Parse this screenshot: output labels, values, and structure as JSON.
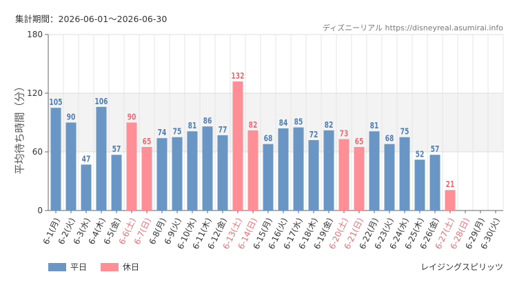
{
  "header": {
    "period": "集計期間：2026-06-01〜2026-06-30",
    "credit": "ディズニーリアル https://disneyreal.asumirai.info"
  },
  "attraction": "レイジングスピリッツ",
  "colors": {
    "weekday": "#6a96c6",
    "holiday": "#ff8f96",
    "weekday_label": "#4f7fb6",
    "holiday_label": "#ee6c74",
    "band": "#f3f3f3"
  },
  "legend": [
    {
      "name": "平日",
      "color": "#6a96c6"
    },
    {
      "name": "休日",
      "color": "#ff8f96"
    }
  ],
  "chart_data": {
    "type": "bar",
    "ylabel": "平均待ち時間（分）",
    "ylim": [
      0,
      180
    ],
    "yticks": [
      0,
      60,
      120,
      180
    ],
    "band": [
      60,
      120
    ],
    "grid": true,
    "legend_position": "bottom-left",
    "categories": [
      "6-1(月)",
      "6-2(火)",
      "6-3(水)",
      "6-4(木)",
      "6-5(金)",
      "6-6(土)",
      "6-7(日)",
      "6-8(月)",
      "6-9(火)",
      "6-10(水)",
      "6-11(木)",
      "6-12(金)",
      "6-13(土)",
      "6-14(日)",
      "6-15(月)",
      "6-16(火)",
      "6-17(水)",
      "6-18(木)",
      "6-19(金)",
      "6-20(土)",
      "6-21(日)",
      "6-22(月)",
      "6-23(火)",
      "6-24(水)",
      "6-25(木)",
      "6-26(金)",
      "6-27(土)",
      "6-28(日)",
      "6-29(月)",
      "6-30(火)"
    ],
    "values": [
      105,
      90,
      47,
      106,
      57,
      90,
      65,
      74,
      75,
      81,
      86,
      77,
      132,
      82,
      68,
      84,
      85,
      72,
      82,
      73,
      65,
      81,
      68,
      75,
      52,
      57,
      21,
      null,
      null,
      null
    ],
    "holiday": [
      false,
      false,
      false,
      false,
      false,
      true,
      true,
      false,
      false,
      false,
      false,
      false,
      true,
      true,
      false,
      false,
      false,
      false,
      false,
      true,
      true,
      false,
      false,
      false,
      false,
      false,
      true,
      true,
      false,
      false
    ]
  }
}
